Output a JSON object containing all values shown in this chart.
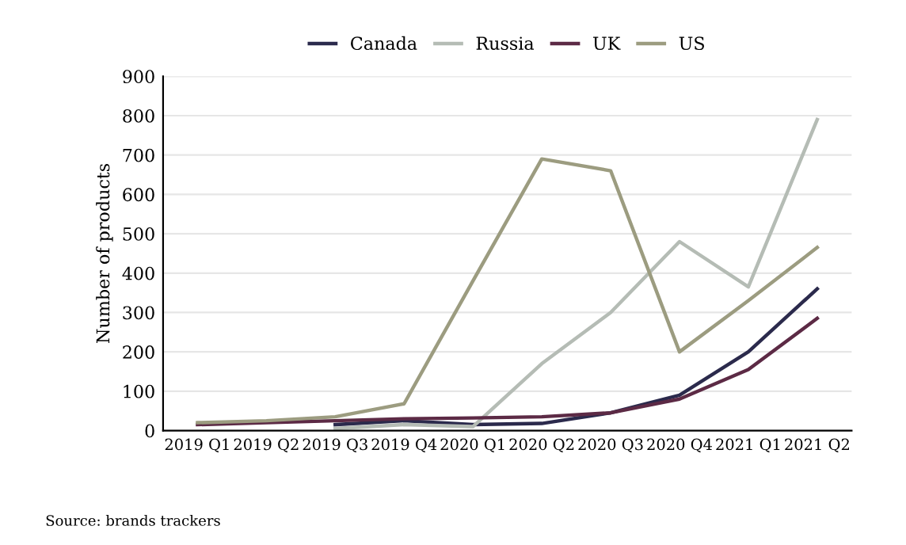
{
  "chart_data": {
    "type": "line",
    "ylabel": "Number of products",
    "categories": [
      "2019 Q1",
      "2019 Q2",
      "2019 Q3",
      "2019 Q4",
      "2020 Q1",
      "2020 Q2",
      "2020 Q3",
      "2020 Q4",
      "2021 Q1",
      "2021 Q2"
    ],
    "series": [
      {
        "name": "Canada",
        "color": "#2b2a4c",
        "values": [
          null,
          null,
          15,
          25,
          15,
          18,
          45,
          90,
          200,
          360
        ]
      },
      {
        "name": "Russia",
        "color": "#b5bcb5",
        "values": [
          null,
          null,
          5,
          15,
          10,
          170,
          300,
          480,
          365,
          790
        ]
      },
      {
        "name": "UK",
        "color": "#5c2a45",
        "values": [
          15,
          20,
          25,
          30,
          32,
          35,
          45,
          80,
          155,
          285
        ]
      },
      {
        "name": "US",
        "color": "#9c9c80",
        "values": [
          20,
          25,
          35,
          68,
          380,
          690,
          660,
          200,
          330,
          465
        ]
      }
    ],
    "ylim": [
      0,
      900
    ],
    "yticks": [
      0,
      100,
      200,
      300,
      400,
      500,
      600,
      700,
      800,
      900
    ],
    "grid": "y",
    "legend": "top",
    "marker": "none",
    "line_style": "solid",
    "annotations": [
      "Source: brands trackers"
    ]
  }
}
